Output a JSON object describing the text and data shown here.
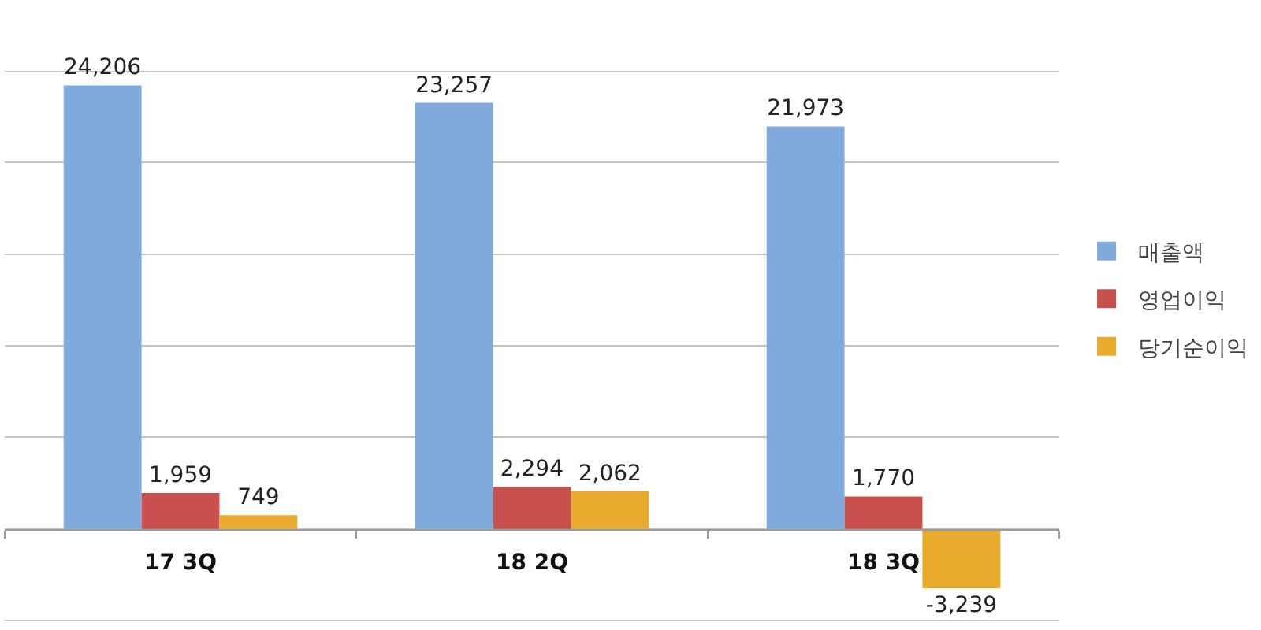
{
  "chart_data": {
    "type": "bar",
    "categories": [
      "17 3Q",
      "18 2Q",
      "18 3Q"
    ],
    "series": [
      {
        "name": "매출액",
        "color": "#80aadc",
        "values": [
          24206,
          23257,
          21973
        ],
        "value_labels": [
          "24,206",
          "23,257",
          "21,973"
        ]
      },
      {
        "name": "영업이익",
        "color": "#c8504d",
        "values": [
          1959,
          2294,
          1770
        ],
        "value_labels": [
          "1,959",
          "2,294",
          "1,770"
        ]
      },
      {
        "name": "당기순이익",
        "color": "#e8ab2d",
        "values": [
          749,
          2062,
          -3239
        ],
        "value_labels": [
          "749",
          "2,062",
          "-3,239"
        ]
      }
    ],
    "ylim": [
      -5000,
      25000
    ],
    "yticks": [
      {
        "value": -5000,
        "label": null
      },
      {
        "value": 0,
        "label": null
      },
      {
        "value": 5000,
        "label": null
      },
      {
        "value": 10000,
        "label": null
      },
      {
        "value": 15000,
        "label": null
      },
      {
        "value": 20000,
        "label": null
      },
      {
        "value": 25000,
        "label": null
      }
    ],
    "grid": "y",
    "tick_labels": "x",
    "legend": "right"
  }
}
